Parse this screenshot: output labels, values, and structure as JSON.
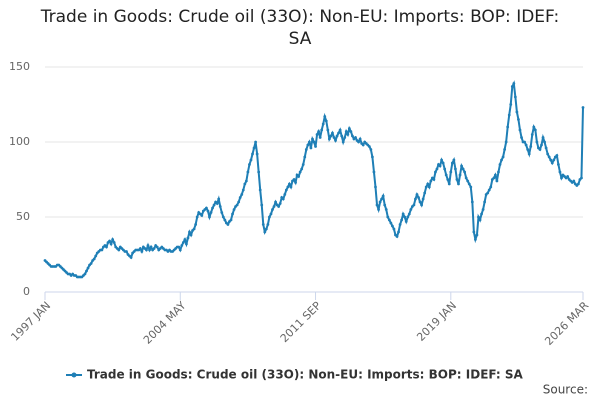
{
  "chart_data": {
    "type": "line",
    "title": "Trade in Goods: Crude oil (33O): Non-EU: Imports: BOP: IDEF: SA",
    "source": "Source:",
    "categories": [
      "1997 JAN",
      null,
      null,
      null,
      null,
      null,
      null,
      null,
      null,
      null,
      null,
      null,
      null,
      null,
      null,
      null,
      null,
      null,
      null,
      null,
      null,
      null,
      null,
      null,
      null,
      null,
      null,
      null,
      null,
      null,
      null,
      null,
      null,
      null,
      null,
      null,
      null,
      null,
      null,
      null,
      null,
      null,
      null,
      null,
      null,
      null,
      null,
      null,
      null,
      null,
      null,
      null,
      null,
      null,
      null,
      null,
      null,
      null,
      null,
      null,
      null,
      null,
      null,
      null,
      null,
      null,
      null,
      null,
      null,
      null,
      null,
      null,
      null,
      null,
      null,
      null,
      null,
      null,
      null,
      null,
      null,
      null,
      null,
      null,
      null,
      null,
      null,
      null,
      "2004 MAY",
      null,
      null,
      null,
      null,
      null,
      null,
      null,
      null,
      null,
      null,
      null,
      null,
      null,
      null,
      null,
      null,
      null,
      null,
      null,
      null,
      null,
      null,
      null,
      null,
      null,
      null,
      null,
      null,
      null,
      null,
      null,
      null,
      null,
      null,
      null,
      null,
      null,
      null,
      null,
      null,
      null,
      null,
      null,
      null,
      null,
      null,
      null,
      null,
      null,
      null,
      null,
      null,
      null,
      null,
      null,
      null,
      null,
      null,
      null,
      null,
      null,
      null,
      null,
      null,
      null,
      null,
      null,
      null,
      null,
      null,
      null,
      null,
      null,
      null,
      null,
      null,
      null,
      null,
      null,
      null,
      null,
      null,
      null,
      null,
      null,
      null,
      null,
      "2011 SEP",
      null,
      null,
      null,
      null,
      null,
      null,
      null,
      null,
      null,
      null,
      null,
      null,
      null,
      null,
      null,
      null,
      null,
      null,
      null,
      null,
      null,
      null,
      null,
      null,
      null,
      null,
      null,
      null,
      null,
      null,
      null,
      null,
      null,
      null,
      null,
      null,
      null,
      null,
      null,
      null,
      null,
      null,
      null,
      null,
      null,
      null,
      null,
      null,
      null,
      null,
      null,
      null,
      null,
      null,
      null,
      null,
      null,
      null,
      null,
      null,
      null,
      null,
      null,
      null,
      null,
      null,
      null,
      null,
      null,
      null,
      null,
      null,
      null,
      null,
      null,
      null,
      null,
      null,
      null,
      null,
      null,
      null,
      null,
      null,
      null,
      null,
      null,
      "2019 JAN",
      null,
      null,
      null,
      null,
      null,
      null,
      null,
      null,
      null,
      null,
      null,
      null,
      null,
      null,
      null,
      null,
      null,
      null,
      null,
      null,
      null,
      null,
      null,
      null,
      null,
      null,
      null,
      null,
      null,
      null,
      null,
      null,
      null,
      null,
      null,
      null,
      null,
      null,
      null,
      null,
      null,
      null,
      null,
      null,
      null,
      null,
      null,
      null,
      null,
      null,
      null,
      null,
      null,
      null,
      null,
      null,
      null,
      null,
      null,
      null,
      null,
      null,
      null,
      null,
      null,
      null,
      null,
      null,
      null,
      null,
      null,
      null,
      null,
      null,
      null,
      null,
      null,
      null,
      null,
      null,
      null,
      null,
      null,
      null,
      null,
      "2026 MAR"
    ],
    "series": [
      {
        "name": "Trade in Goods: Crude oil (33O): Non-EU: Imports: BOP: IDEF: SA",
        "color": "#1f7fb6",
        "values": [
          21,
          20,
          19,
          18,
          17,
          17,
          17,
          17,
          18,
          18,
          17,
          16,
          15,
          14,
          13,
          12,
          12,
          11,
          12,
          11,
          11,
          10,
          10,
          10,
          10,
          11,
          12,
          14,
          16,
          18,
          19,
          21,
          22,
          24,
          26,
          27,
          28,
          28,
          30,
          31,
          30,
          33,
          34,
          32,
          35,
          33,
          30,
          29,
          28,
          30,
          29,
          28,
          27,
          27,
          25,
          24,
          23,
          26,
          27,
          28,
          28,
          28,
          29,
          27,
          30,
          29,
          28,
          31,
          28,
          30,
          28,
          29,
          31,
          30,
          28,
          29,
          30,
          29,
          28,
          28,
          27,
          28,
          27,
          27,
          28,
          29,
          30,
          30,
          28,
          31,
          33,
          35,
          32,
          36,
          40,
          38,
          41,
          42,
          45,
          50,
          53,
          52,
          51,
          54,
          55,
          56,
          54,
          50,
          53,
          56,
          58,
          60,
          59,
          62,
          57,
          53,
          50,
          48,
          46,
          45,
          47,
          48,
          52,
          55,
          57,
          58,
          60,
          63,
          65,
          68,
          72,
          74,
          80,
          85,
          88,
          92,
          96,
          100,
          92,
          80,
          68,
          58,
          45,
          40,
          42,
          45,
          50,
          52,
          55,
          57,
          60,
          58,
          57,
          59,
          63,
          62,
          65,
          68,
          70,
          72,
          70,
          74,
          75,
          73,
          78,
          77,
          80,
          82,
          85,
          90,
          95,
          98,
          100,
          96,
          102,
          100,
          97,
          105,
          107,
          103,
          108,
          112,
          117,
          114,
          108,
          102,
          104,
          106,
          103,
          101,
          104,
          106,
          108,
          104,
          100,
          103,
          107,
          105,
          109,
          107,
          104,
          102,
          103,
          101,
          100,
          102,
          99,
          98,
          100,
          99,
          98,
          97,
          95,
          90,
          80,
          70,
          58,
          55,
          60,
          62,
          64,
          58,
          55,
          50,
          48,
          46,
          44,
          42,
          38,
          37,
          40,
          45,
          48,
          52,
          50,
          47,
          50,
          52,
          55,
          57,
          58,
          62,
          65,
          63,
          60,
          58,
          62,
          66,
          70,
          72,
          70,
          74,
          76,
          75,
          80,
          82,
          85,
          84,
          88,
          86,
          82,
          78,
          75,
          72,
          80,
          86,
          88,
          82,
          75,
          72,
          78,
          84,
          82,
          80,
          76,
          74,
          72,
          70,
          60,
          40,
          35,
          38,
          50,
          48,
          52,
          55,
          60,
          65,
          66,
          68,
          70,
          75,
          76,
          78,
          74,
          80,
          85,
          88,
          90,
          95,
          100,
          110,
          118,
          125,
          137,
          139,
          130,
          120,
          115,
          108,
          103,
          100,
          100,
          98,
          95,
          92,
          97,
          105,
          110,
          108,
          100,
          96,
          95,
          98,
          103,
          100,
          96,
          92,
          90,
          88,
          86,
          88,
          90,
          91,
          85,
          80,
          76,
          78,
          77,
          76,
          77,
          75,
          74,
          73,
          74,
          72,
          71,
          72,
          75,
          76,
          123
        ]
      }
    ],
    "ylim": [
      0,
      150
    ],
    "yticks": [
      0,
      50,
      100,
      150
    ],
    "grid": true,
    "legend": "bottom"
  }
}
